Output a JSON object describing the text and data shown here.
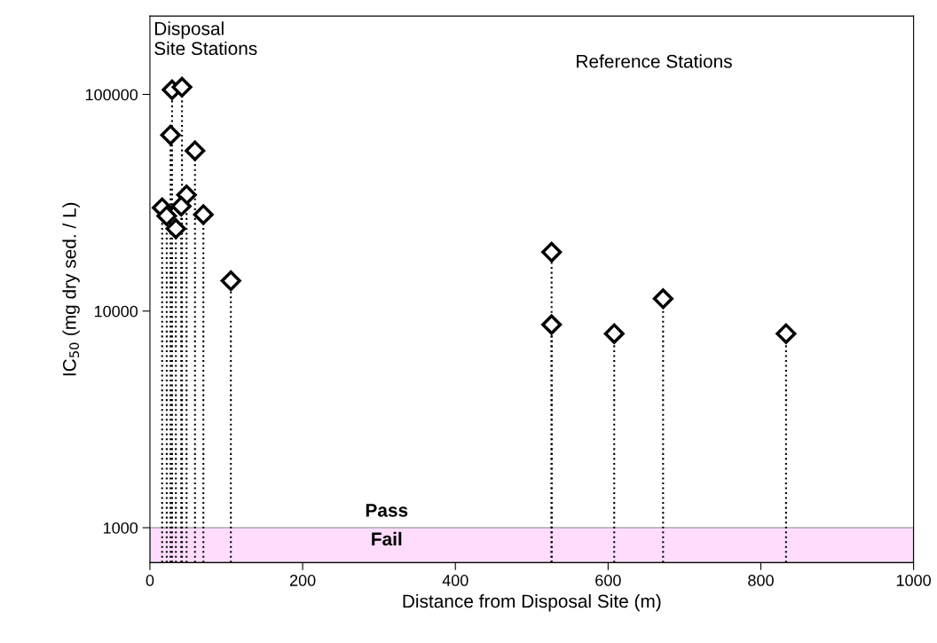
{
  "chart_data": {
    "type": "lollipop",
    "xlabel": "Distance from Disposal Site (m)",
    "ylabel": "IC$_{50}$ (mg dry sed. / L)",
    "x": [
      16,
      22,
      29,
      42,
      27,
      59,
      48,
      41,
      34,
      70,
      106,
      526,
      526,
      608,
      672,
      833
    ],
    "series": [
      {
        "color": "#000000",
        "values": [
          30000,
          27500,
          105000,
          108000,
          65000,
          55000,
          34400,
          30500,
          24000,
          27900,
          13800,
          18700,
          8660,
          7870,
          11400,
          7870
        ]
      }
    ],
    "log": "y",
    "xlim": [
      0,
      1000
    ],
    "xticks": [
      0,
      200,
      400,
      600,
      800,
      1000
    ],
    "ylim": [
      690,
      230000
    ],
    "yticks": [
      1000,
      10000,
      100000
    ],
    "marker": "diamond",
    "line_style": "dotted",
    "grid": false,
    "bands": [
      {
        "axis": "y",
        "from": 690,
        "to": 1000,
        "label": "Fail",
        "color": "#ffdcfc"
      }
    ],
    "annotations": [
      {
        "text": "Pass",
        "x": 310,
        "y": 1000
      },
      "Disposal\nSite Stations",
      "Reference Stations"
    ]
  }
}
